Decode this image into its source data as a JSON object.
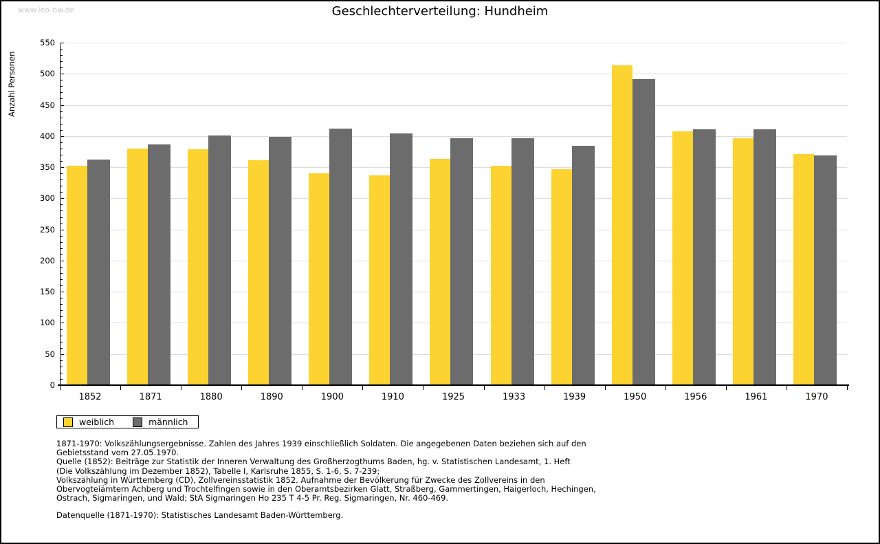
{
  "watermark": "www.leo-bw.de",
  "chart_data": {
    "type": "bar",
    "title": "Geschlechterverteilung: Hundheim",
    "xlabel": "",
    "ylabel": "Anzahl Personen",
    "ylim": [
      0,
      550
    ],
    "ytick_step": 50,
    "ytick_minor_step": 10,
    "grid": true,
    "legend_position": "bottom-left",
    "categories": [
      "1852",
      "1871",
      "1880",
      "1890",
      "1900",
      "1910",
      "1925",
      "1933",
      "1939",
      "1950",
      "1956",
      "1961",
      "1970"
    ],
    "series": [
      {
        "name": "weiblich",
        "color": "#fcd330",
        "values": [
          352,
          380,
          379,
          361,
          340,
          337,
          363,
          352,
          347,
          514,
          408,
          397,
          371
        ]
      },
      {
        "name": "männlich",
        "color": "#6c6c6c",
        "values": [
          362,
          387,
          401,
          399,
          412,
          404,
          396,
          397,
          384,
          492,
          411,
          411,
          369
        ]
      }
    ]
  },
  "legend": {
    "items": [
      {
        "label": "weiblich",
        "color": "#fcd330"
      },
      {
        "label": "männlich",
        "color": "#6c6c6c"
      }
    ]
  },
  "footnotes": {
    "lines": [
      "1871-1970: Volkszählungsergebnisse. Zahlen des Jahres 1939 einschließlich Soldaten. Die angegebenen Daten beziehen sich auf den",
      "Gebietsstand vom 27.05.1970.",
      "Quelle (1852): Beiträge zur Statistik der Inneren Verwaltung des Großherzogthums Baden, hg. v. Statistischen Landesamt, 1. Heft",
      "(Die Volkszählung im Dezember 1852), Tabelle I, Karlsruhe 1855, S. 1-6, S. 7-239;",
      "Volkszählung in Württemberg (CD), Zollvereinsstatistik 1852. Aufnahme der Bevölkerung für Zwecke des Zollvereins in den",
      "Obervogteiämtern Achberg und Trochtelfingen sowie in den Oberamtsbezirken Glatt, Straßberg, Gammertingen, Haigerloch, Hechingen,",
      "Ostrach, Sigmaringen, und Wald; StA Sigmaringen Ho 235 T 4-5 Pr. Reg. Sigmaringen, Nr. 460-469."
    ],
    "datasource": "Datenquelle (1871-1970): Statistisches Landesamt Baden-Württemberg."
  },
  "colors": {
    "grid": "#dcdcdc",
    "axis": "#000000",
    "watermark_text": "#c8c8c8",
    "background": "#ffffff"
  }
}
